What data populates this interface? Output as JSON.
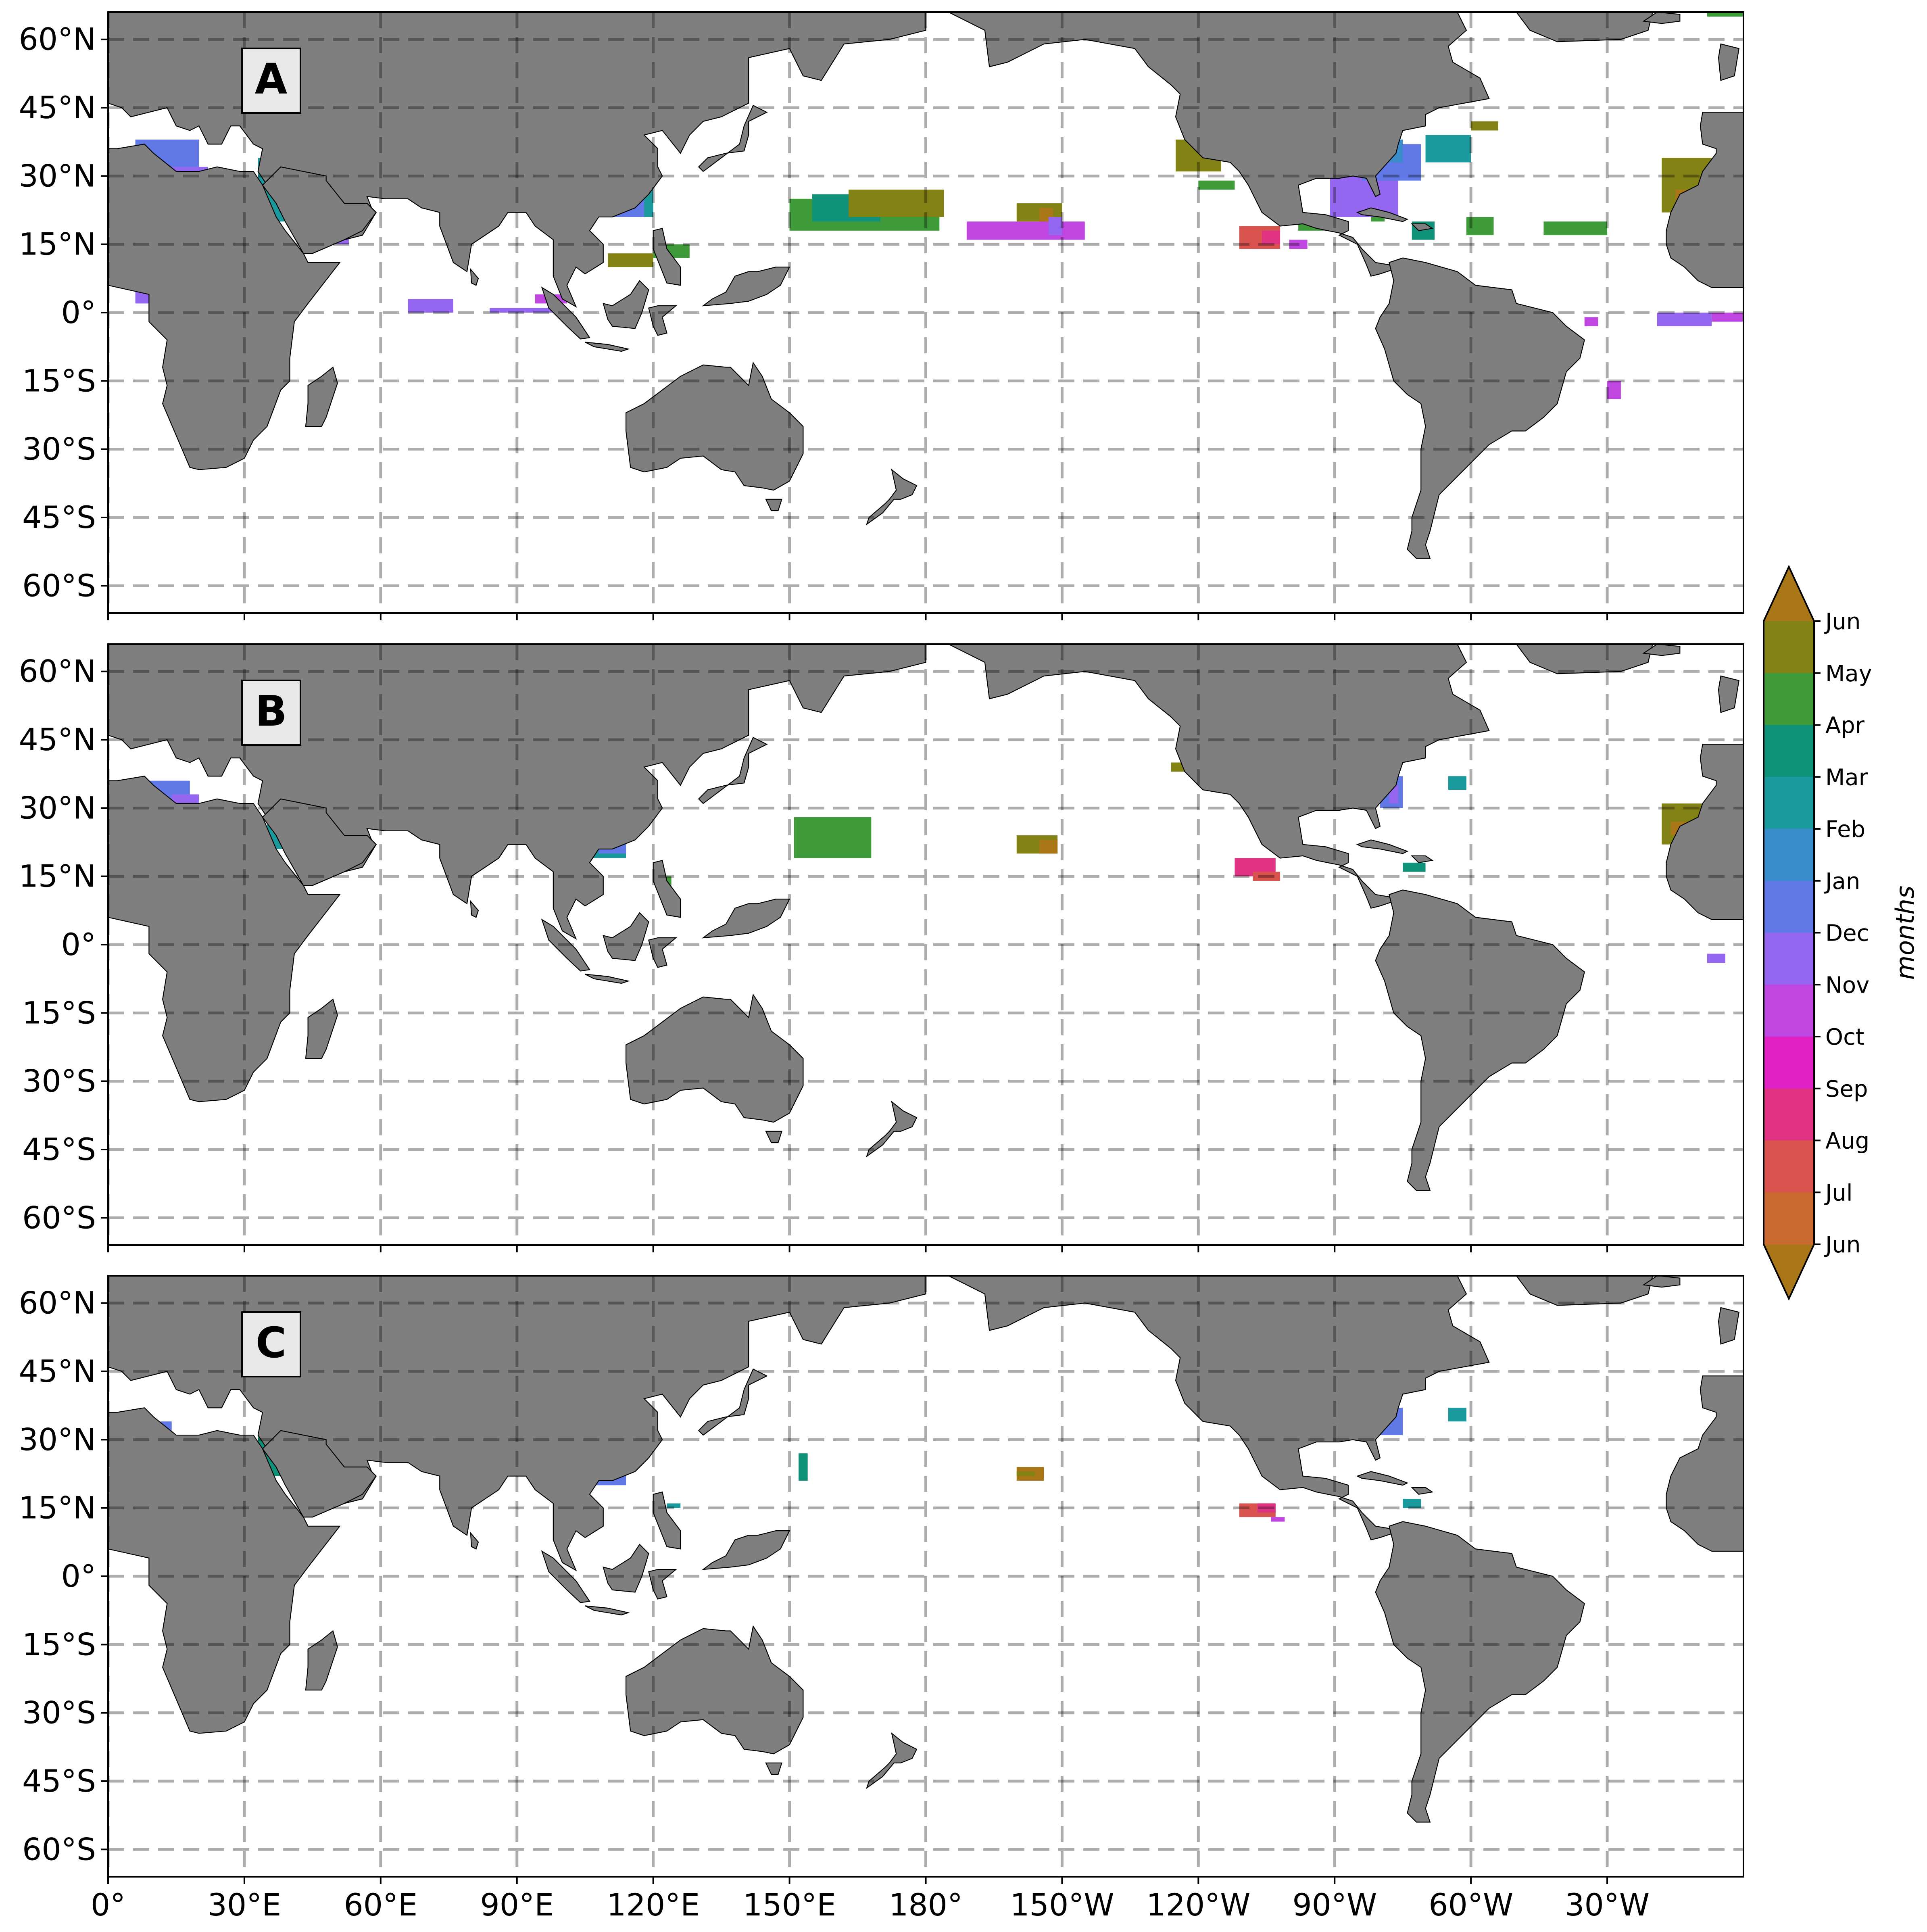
{
  "panels": [
    {
      "label": "A"
    },
    {
      "label": "B"
    },
    {
      "label": "C"
    }
  ],
  "lat_ticks": [
    "60°N",
    "45°N",
    "30°N",
    "15°N",
    "0°",
    "15°S",
    "30°S",
    "45°S",
    "60°S"
  ],
  "lat_values": [
    60,
    45,
    30,
    15,
    0,
    -15,
    -30,
    -45,
    -60
  ],
  "lon_ticks": [
    "0°",
    "30°E",
    "60°E",
    "90°E",
    "120°E",
    "150°E",
    "180°",
    "150°W",
    "120°W",
    "90°W",
    "60°W",
    "30°W"
  ],
  "lon_values": [
    0,
    30,
    60,
    90,
    120,
    150,
    180,
    210,
    240,
    270,
    300,
    330
  ],
  "lon_range": [
    0,
    360
  ],
  "lat_range": [
    -66,
    66
  ],
  "colorbar": {
    "label": "months",
    "ticks": [
      "Jun",
      "May",
      "Apr",
      "Mar",
      "Feb",
      "Jan",
      "Dec",
      "Nov",
      "Oct",
      "Sep",
      "Aug",
      "Jul",
      "Jun"
    ],
    "colors": [
      "#838214",
      "#3f9a3a",
      "#0f9279",
      "#1b9a9e",
      "#3a8dca",
      "#6079e7",
      "#9566ef",
      "#bf46e0",
      "#e021c4",
      "#e03383",
      "#d9534f",
      "#c96a30"
    ],
    "extend_color": "#a97717"
  },
  "land_color": "#7f7f7f",
  "grid": "dashed"
}
